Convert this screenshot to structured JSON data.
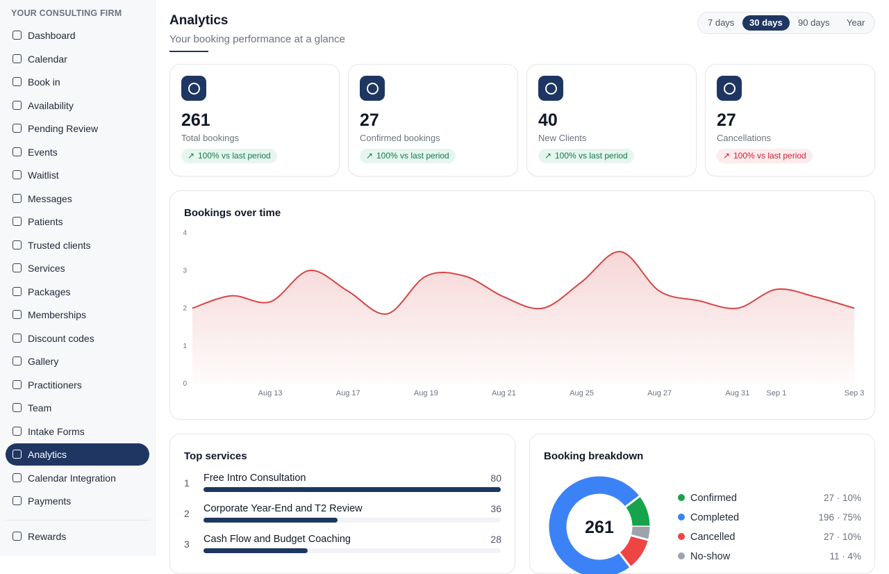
{
  "sidebar": {
    "brand": "YOUR CONSULTING FIRM",
    "items": [
      "Dashboard",
      "Calendar",
      "Book in",
      "Availability",
      "Pending Review",
      "Events",
      "Waitlist",
      "Messages",
      "Patients",
      "Trusted clients",
      "Services",
      "Packages",
      "Memberships",
      "Discount codes",
      "Gallery",
      "Practitioners",
      "Team",
      "Intake Forms",
      "Analytics",
      "Calendar Integration",
      "Payments"
    ],
    "footer_items": [
      "Rewards"
    ]
  },
  "header": {
    "title": "Analytics",
    "subtitle": "Your booking performance at a glance",
    "ranges": [
      "7 days",
      "30 days",
      "90 days",
      "Year"
    ]
  },
  "stats": [
    {
      "value": 261,
      "label": "Total bookings",
      "change": "100% vs last period",
      "tone": "#13794d",
      "tone_bg": "#e6f6ee"
    },
    {
      "value": 27,
      "label": "Confirmed bookings",
      "change": "100% vs last period",
      "tone": "#13794d",
      "tone_bg": "#e6f6ee"
    },
    {
      "value": 40,
      "label": "New Clients",
      "change": "100% vs last period",
      "tone": "#13794d",
      "tone_bg": "#e6f6ee"
    },
    {
      "value": 27,
      "label": "Cancellations",
      "change": "100% vs last period",
      "tone": "#c9222f",
      "tone_bg": "#fdebed"
    }
  ],
  "chart_data": [
    {
      "type": "line",
      "title": "Bookings over time",
      "categories": [
        null,
        null,
        "Aug 13",
        null,
        "Aug 17",
        null,
        "Aug 19",
        null,
        "Aug 21",
        null,
        "Aug 25",
        null,
        "Aug 27",
        null,
        "Aug 31",
        "Sep 1",
        null,
        "Sep 3"
      ],
      "values": [
        2,
        2.33,
        2.17,
        3,
        2.45,
        1.85,
        2.85,
        2.85,
        2.3,
        2,
        2.7,
        3.5,
        2.45,
        2.2,
        2,
        2.5,
        2.3,
        2
      ],
      "color": "#d64545",
      "ylim": [
        0,
        4
      ],
      "yticks": [
        0,
        1,
        2,
        3,
        4
      ]
    },
    {
      "type": "bar",
      "title": "Top services",
      "ranks": [
        1,
        2,
        3
      ],
      "categories": [
        "Free Intro Consultation",
        "Corporate Year-End and T2 Review",
        "Cash Flow and Budget Coaching"
      ],
      "values": [
        80,
        36,
        28
      ],
      "color": "#1e3661"
    },
    {
      "type": "pie",
      "title": "Booking breakdown",
      "center_label": 261,
      "categories": [
        "Confirmed",
        "Completed",
        "Cancelled",
        "No-show"
      ],
      "values": [
        27,
        196,
        27,
        11
      ],
      "value_labels": [
        "27 · 10%",
        "196 · 75%",
        "27 · 10%",
        "11 · 4%"
      ],
      "colors": [
        "#16a34a",
        "#3b82f6",
        "#ef4444",
        "#9ca3af"
      ]
    }
  ]
}
